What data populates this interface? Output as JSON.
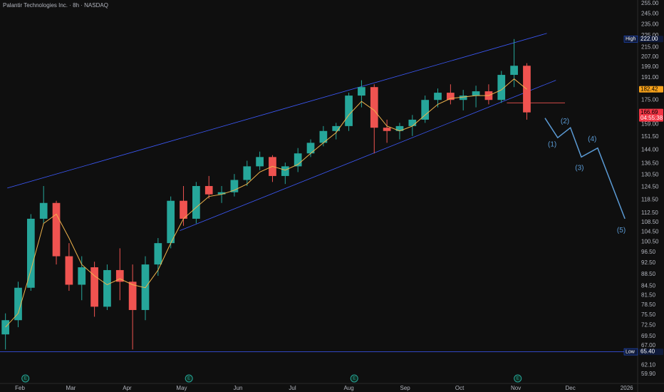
{
  "chart_data": {
    "type": "candlestick",
    "title": "Palantir Technologies Inc. · 8h · NASDAQ",
    "log_scale": true,
    "grid": false,
    "xlim": [
      21,
      372
    ],
    "ylim": [
      57.47,
      258.6
    ],
    "xticks": [
      {
        "value": 32,
        "label": "Feb"
      },
      {
        "value": 60,
        "label": "Mar"
      },
      {
        "value": 91,
        "label": "Apr"
      },
      {
        "value": 121,
        "label": "May"
      },
      {
        "value": 152,
        "label": "Jun"
      },
      {
        "value": 182,
        "label": "Jul"
      },
      {
        "value": 213,
        "label": "Aug"
      },
      {
        "value": 244,
        "label": "Sep"
      },
      {
        "value": 274,
        "label": "Oct"
      },
      {
        "value": 305,
        "label": "Nov"
      },
      {
        "value": 335,
        "label": "Dec"
      },
      {
        "value": 366,
        "label": "2026"
      }
    ],
    "yticks": [
      {
        "value": 255,
        "label": "255.00"
      },
      {
        "value": 245,
        "label": "245.00"
      },
      {
        "value": 235,
        "label": "235.00"
      },
      {
        "value": 225,
        "label": "225.00"
      },
      {
        "value": 215,
        "label": "215.00"
      },
      {
        "value": 207,
        "label": "207.00"
      },
      {
        "value": 199,
        "label": "199.00"
      },
      {
        "value": 191,
        "label": "191.00"
      },
      {
        "value": 175,
        "label": "175.00"
      },
      {
        "value": 159,
        "label": "159.00"
      },
      {
        "value": 151.5,
        "label": "151.50"
      },
      {
        "value": 144,
        "label": "144.00"
      },
      {
        "value": 136.5,
        "label": "136.50"
      },
      {
        "value": 130.5,
        "label": "130.50"
      },
      {
        "value": 124.5,
        "label": "124.50"
      },
      {
        "value": 118.5,
        "label": "118.50"
      },
      {
        "value": 112.5,
        "label": "112.50"
      },
      {
        "value": 108.5,
        "label": "108.50"
      },
      {
        "value": 104.5,
        "label": "104.50"
      },
      {
        "value": 100.5,
        "label": "100.50"
      },
      {
        "value": 96.5,
        "label": "96.50"
      },
      {
        "value": 92.5,
        "label": "92.50"
      },
      {
        "value": 88.5,
        "label": "88.50"
      },
      {
        "value": 84.5,
        "label": "84.50"
      },
      {
        "value": 81.5,
        "label": "81.50"
      },
      {
        "value": 78.5,
        "label": "78.50"
      },
      {
        "value": 75.5,
        "label": "75.50"
      },
      {
        "value": 72.5,
        "label": "72.50"
      },
      {
        "value": 69.5,
        "label": "69.50"
      },
      {
        "value": 67,
        "label": "67.00"
      },
      {
        "value": 62.1,
        "label": "62.10"
      },
      {
        "value": 59.9,
        "label": "59.90"
      }
    ],
    "up_color": "#26a69a",
    "down_color": "#ef5350",
    "x": [
      24,
      31,
      38,
      45,
      52,
      59,
      66,
      73,
      80,
      87,
      94,
      101,
      108,
      115,
      122,
      129,
      136,
      143,
      150,
      157,
      164,
      171,
      178,
      185,
      192,
      199,
      206,
      213,
      220,
      227,
      234,
      241,
      248,
      255,
      262,
      269,
      276,
      283,
      290,
      297,
      304,
      311
    ],
    "open": [
      70,
      74,
      84,
      110,
      117,
      95,
      85,
      91,
      78,
      90,
      86,
      77,
      92,
      100,
      118,
      110,
      125,
      121,
      122,
      128,
      135,
      140,
      130,
      135,
      142,
      148,
      155,
      158,
      178,
      184,
      157,
      155,
      158,
      162,
      175,
      180,
      175,
      178,
      181,
      175,
      193,
      200
    ],
    "high": [
      76,
      86,
      112,
      125,
      118,
      100,
      95,
      93,
      92,
      98,
      92,
      95,
      102,
      120,
      125,
      127,
      130,
      125,
      131,
      138,
      143,
      141,
      137,
      145,
      150,
      158,
      160,
      180,
      189,
      186,
      162,
      160,
      165,
      178,
      183,
      186,
      182,
      185,
      186,
      196,
      222,
      202
    ],
    "low": [
      66,
      72,
      83,
      108,
      92,
      83,
      80,
      75,
      77,
      80,
      66,
      74,
      88,
      98,
      107,
      108,
      119,
      117,
      120,
      125,
      133,
      127,
      126,
      132,
      140,
      146,
      150,
      155,
      170,
      142,
      148,
      150,
      152,
      160,
      170,
      172,
      168,
      170,
      172,
      173,
      184,
      162
    ],
    "close": [
      74,
      84,
      110,
      117,
      95,
      85,
      91,
      78,
      90,
      86,
      77,
      92,
      100,
      118,
      110,
      125,
      121,
      122,
      128,
      135,
      140,
      130,
      135,
      142,
      148,
      155,
      158,
      178,
      184,
      157,
      155,
      158,
      162,
      175,
      180,
      175,
      178,
      181,
      175,
      193,
      200,
      166.69
    ],
    "ma": {
      "color": "#f0b44c",
      "values": [
        72,
        76,
        90,
        108,
        112,
        102,
        92,
        88,
        85,
        87,
        85,
        84,
        90,
        100,
        110,
        115,
        120,
        121,
        123,
        126,
        132,
        135,
        133,
        136,
        142,
        148,
        154,
        165,
        174,
        168,
        158,
        155,
        158,
        165,
        172,
        176,
        177,
        178,
        178,
        182,
        190,
        182.42
      ]
    },
    "drawings": [
      {
        "x": [
          25,
          322
        ],
        "y": [
          124,
          227
        ],
        "color": "#3d5afe"
      },
      {
        "x": [
          120,
          327
        ],
        "y": [
          105,
          189
        ],
        "color": "#3d5afe"
      },
      {
        "x": [
          300,
          332
        ],
        "y": [
          173,
          173
        ],
        "color": "#ef5350"
      },
      {
        "x": [
          21,
          372
        ],
        "y": [
          65.4,
          65.4
        ],
        "color": "#3d5afe"
      },
      {
        "x": [
          321,
          328,
          335,
          341,
          350,
          365
        ],
        "y": [
          163,
          151,
          157,
          140,
          145,
          110
        ],
        "color": "#5b9bd5"
      }
    ],
    "wave_labels": [
      {
        "x": 325,
        "y": 147,
        "label": "(1)"
      },
      {
        "x": 332,
        "y": 161,
        "label": "(2)"
      },
      {
        "x": 340,
        "y": 134,
        "label": "(3)"
      },
      {
        "x": 347,
        "y": 150,
        "label": "(4)"
      },
      {
        "x": 363,
        "y": 105,
        "label": "(5)"
      }
    ],
    "price_tags": [
      {
        "value": 222,
        "label": "222.00",
        "name": "High",
        "color": "#2962ff",
        "fill": "#0f1a3a"
      },
      {
        "value": 182.42,
        "label": "182.42",
        "color": "#f7a21b",
        "fill": "#f7a21b"
      },
      {
        "value": 166.69,
        "label": "166.69",
        "countdown": "04:55:38",
        "color": "#f23645",
        "fill": "#f23645"
      },
      {
        "value": 65.4,
        "label": "65.40",
        "name": "Low",
        "color": "#2962ff",
        "fill": "#0f1a3a"
      }
    ],
    "events": [
      {
        "x": 35,
        "label": "E"
      },
      {
        "x": 125,
        "label": "E"
      },
      {
        "x": 216,
        "label": "E"
      },
      {
        "x": 306,
        "label": "E"
      }
    ]
  }
}
